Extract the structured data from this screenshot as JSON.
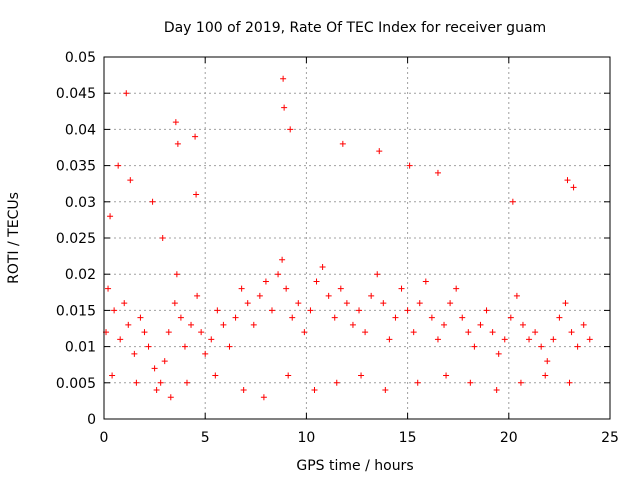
{
  "chart_data": {
    "type": "scatter",
    "title": "Day 100 of 2019, Rate Of TEC Index for receiver guam",
    "xlabel": "GPS time / hours",
    "ylabel": "ROTI / TECUs",
    "xlim": [
      0,
      25
    ],
    "ylim": [
      0,
      0.05
    ],
    "x_ticks": [
      "0",
      "5",
      "10",
      "15",
      "20",
      "25"
    ],
    "y_ticks": [
      "0",
      "0.005",
      "0.01",
      "0.015",
      "0.02",
      "0.025",
      "0.03",
      "0.035",
      "0.04",
      "0.045",
      "0.05"
    ],
    "grid": true,
    "marker": "plus",
    "color": "#ff0000",
    "series": [
      {
        "x": [
          0.1,
          0.2,
          0.5,
          0.8,
          1.0,
          1.2,
          1.5,
          1.8,
          2.0,
          2.2,
          2.5,
          2.8,
          3.0,
          3.2,
          3.5,
          3.6,
          3.8,
          4.0,
          4.3,
          4.6,
          4.8,
          5.0,
          5.3,
          5.6,
          5.9,
          6.2,
          6.5,
          6.8,
          7.1,
          7.4,
          7.7,
          8.0,
          8.3,
          8.6,
          8.8,
          9.0,
          9.3,
          9.6,
          9.9,
          10.2,
          10.5,
          10.8,
          11.1,
          11.4,
          11.7,
          12.0,
          12.3,
          12.6,
          12.9,
          13.2,
          13.5,
          13.8,
          14.1,
          14.4,
          14.7,
          15.0,
          15.3,
          15.6,
          15.9,
          16.2,
          16.5,
          16.8,
          17.1,
          17.4,
          17.7,
          18.0,
          18.3,
          18.6,
          18.9,
          19.2,
          19.5,
          19.8,
          20.1,
          20.4,
          20.7,
          21.0,
          21.3,
          21.6,
          21.9,
          22.2,
          22.5,
          22.8,
          23.1,
          23.4,
          23.7,
          24.0,
          0.3,
          0.7,
          1.1,
          1.3,
          2.4,
          2.9,
          3.55,
          3.65,
          4.5,
          4.55,
          8.85,
          8.9,
          11.8,
          13.6,
          15.1,
          16.5,
          20.2,
          22.9,
          23.2,
          9.2,
          0.4,
          1.6,
          2.6,
          3.3,
          4.1,
          5.5,
          6.9,
          7.9,
          9.1,
          10.4,
          11.5,
          12.7,
          13.9,
          15.5,
          16.9,
          18.1,
          19.4,
          20.6,
          21.8,
          23.0
        ],
        "y": [
          0.012,
          0.018,
          0.015,
          0.011,
          0.016,
          0.013,
          0.009,
          0.014,
          0.012,
          0.01,
          0.007,
          0.005,
          0.008,
          0.012,
          0.016,
          0.02,
          0.014,
          0.01,
          0.013,
          0.017,
          0.012,
          0.009,
          0.011,
          0.015,
          0.013,
          0.01,
          0.014,
          0.018,
          0.016,
          0.013,
          0.017,
          0.019,
          0.015,
          0.02,
          0.022,
          0.018,
          0.014,
          0.016,
          0.012,
          0.015,
          0.019,
          0.021,
          0.017,
          0.014,
          0.018,
          0.016,
          0.013,
          0.015,
          0.012,
          0.017,
          0.02,
          0.016,
          0.011,
          0.014,
          0.018,
          0.015,
          0.012,
          0.016,
          0.019,
          0.014,
          0.011,
          0.013,
          0.016,
          0.018,
          0.014,
          0.012,
          0.01,
          0.013,
          0.015,
          0.012,
          0.009,
          0.011,
          0.014,
          0.017,
          0.013,
          0.011,
          0.012,
          0.01,
          0.008,
          0.011,
          0.014,
          0.016,
          0.012,
          0.01,
          0.013,
          0.011,
          0.028,
          0.035,
          0.045,
          0.033,
          0.03,
          0.025,
          0.041,
          0.038,
          0.039,
          0.031,
          0.047,
          0.043,
          0.038,
          0.037,
          0.035,
          0.034,
          0.03,
          0.033,
          0.032,
          0.04,
          0.006,
          0.005,
          0.004,
          0.003,
          0.005,
          0.006,
          0.004,
          0.003,
          0.006,
          0.004,
          0.005,
          0.006,
          0.004,
          0.005,
          0.006,
          0.005,
          0.004,
          0.005,
          0.006,
          0.005
        ]
      }
    ]
  }
}
